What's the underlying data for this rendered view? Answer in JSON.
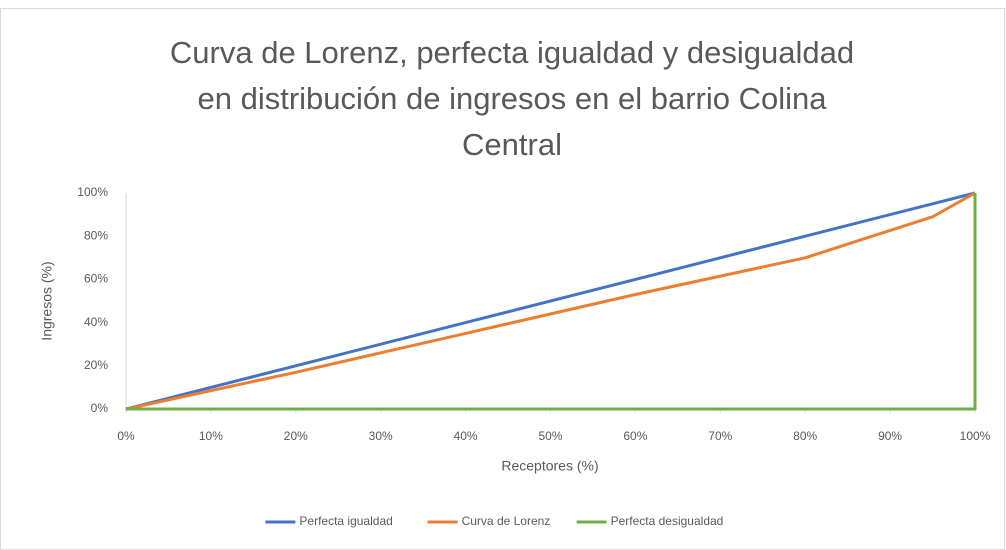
{
  "chart_data": {
    "type": "line",
    "title": [
      "Curva de Lorenz, perfecta igualdad y desigualdad",
      "en distribución de ingresos en el barrio Colina",
      "Central"
    ],
    "xlabel": "Receptores (%)",
    "ylabel": "Ingresos (%)",
    "xlim": [
      0,
      100
    ],
    "ylim": [
      0,
      100
    ],
    "xticks": [
      {
        "value": 0,
        "label": "0%"
      },
      {
        "value": 10,
        "label": "10%"
      },
      {
        "value": 20,
        "label": "20%"
      },
      {
        "value": 30,
        "label": "30%"
      },
      {
        "value": 40,
        "label": "40%"
      },
      {
        "value": 50,
        "label": "50%"
      },
      {
        "value": 60,
        "label": "60%"
      },
      {
        "value": 70,
        "label": "70%"
      },
      {
        "value": 80,
        "label": "80%"
      },
      {
        "value": 90,
        "label": "90%"
      },
      {
        "value": 100,
        "label": "100%"
      }
    ],
    "yticks": [
      {
        "value": 0,
        "label": "0%"
      },
      {
        "value": 20,
        "label": "20%"
      },
      {
        "value": 40,
        "label": "40%"
      },
      {
        "value": 60,
        "label": "60%"
      },
      {
        "value": 80,
        "label": "80%"
      },
      {
        "value": 100,
        "label": "100%"
      }
    ],
    "grid": false,
    "legend": "bottom",
    "series": [
      {
        "name": "Perfecta igualdad",
        "color": "#4472c4",
        "x": [
          0,
          20,
          40,
          60,
          80,
          95,
          100
        ],
        "values": [
          0,
          20,
          40,
          60,
          80,
          95,
          100
        ]
      },
      {
        "name": "Curva de Lorenz",
        "color": "#ed7d31",
        "x": [
          0,
          20,
          40,
          60,
          80,
          95,
          100
        ],
        "values": [
          0,
          17,
          35,
          53,
          70,
          89,
          100
        ]
      },
      {
        "name": "Perfecta desigualdad",
        "color": "#70ad47",
        "x": [
          0,
          100,
          100
        ],
        "values": [
          0,
          0,
          100
        ]
      }
    ]
  }
}
